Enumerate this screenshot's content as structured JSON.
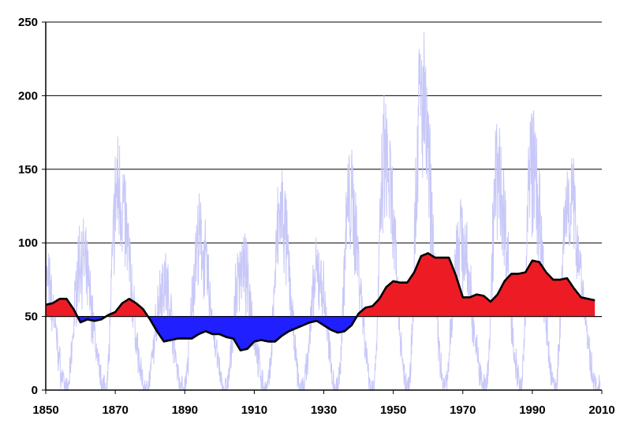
{
  "chart_data": {
    "type": "area",
    "title": "",
    "xlabel": "",
    "ylabel": "",
    "xlim": [
      1850,
      2010
    ],
    "ylim": [
      0,
      250
    ],
    "x_ticks": [
      1850,
      1870,
      1890,
      1910,
      1930,
      1950,
      1970,
      1990,
      2010
    ],
    "y_ticks": [
      0,
      50,
      100,
      150,
      200,
      250
    ],
    "grid": "horizontal",
    "baseline": 50,
    "colors": {
      "above_baseline": "#ed1c24",
      "below_baseline": "#1f1fff",
      "smoothed_line": "#000000",
      "monthly_series": "#c8c8f8",
      "gridline": "#000000"
    },
    "series": [
      {
        "role": "monthly",
        "cycle_peaks": [
          {
            "year": 1860.1,
            "value": 116
          },
          {
            "year": 1870.6,
            "value": 176
          },
          {
            "year": 1883.9,
            "value": 95
          },
          {
            "year": 1894.0,
            "value": 129
          },
          {
            "year": 1906.2,
            "value": 108
          },
          {
            "year": 1917.6,
            "value": 154
          },
          {
            "year": 1928.4,
            "value": 101
          },
          {
            "year": 1937.4,
            "value": 165
          },
          {
            "year": 1947.5,
            "value": 201
          },
          {
            "year": 1957.9,
            "value": 253
          },
          {
            "year": 1968.9,
            "value": 135
          },
          {
            "year": 1979.9,
            "value": 188
          },
          {
            "year": 1989.6,
            "value": 201
          },
          {
            "year": 2000.3,
            "value": 170
          }
        ],
        "cycle_minima": [
          {
            "year": 1856.0,
            "value": 0
          },
          {
            "year": 1867.2,
            "value": 1
          },
          {
            "year": 1878.9,
            "value": 0
          },
          {
            "year": 1889.6,
            "value": 0
          },
          {
            "year": 1901.7,
            "value": 0
          },
          {
            "year": 1913.6,
            "value": 0
          },
          {
            "year": 1923.6,
            "value": 0
          },
          {
            "year": 1933.8,
            "value": 1
          },
          {
            "year": 1944.2,
            "value": 0
          },
          {
            "year": 1954.3,
            "value": 0
          },
          {
            "year": 1964.9,
            "value": 4
          },
          {
            "year": 1976.5,
            "value": 2
          },
          {
            "year": 1986.8,
            "value": 2
          },
          {
            "year": 1996.5,
            "value": 1
          },
          {
            "year": 2008.9,
            "value": 0
          }
        ]
      },
      {
        "role": "smoothed",
        "x": [
          1850,
          1852,
          1854,
          1856,
          1858,
          1860,
          1862,
          1864,
          1866,
          1868,
          1870,
          1872,
          1874,
          1876,
          1878,
          1880,
          1882,
          1884,
          1886,
          1888,
          1890,
          1892,
          1894,
          1896,
          1898,
          1900,
          1902,
          1904,
          1906,
          1908,
          1910,
          1912,
          1914,
          1916,
          1918,
          1920,
          1922,
          1924,
          1926,
          1928,
          1930,
          1932,
          1934,
          1936,
          1938,
          1940,
          1942,
          1944,
          1946,
          1948,
          1950,
          1952,
          1954,
          1956,
          1958,
          1960,
          1962,
          1964,
          1966,
          1968,
          1970,
          1972,
          1974,
          1976,
          1978,
          1980,
          1982,
          1984,
          1986,
          1988,
          1990,
          1992,
          1994,
          1996,
          1998,
          2000,
          2002,
          2004,
          2006,
          2008
        ],
        "y": [
          58,
          59,
          62,
          62,
          55,
          46,
          48,
          47,
          48,
          51,
          53,
          59,
          62,
          59,
          55,
          48,
          40,
          33,
          34,
          35,
          35,
          35,
          38,
          40,
          38,
          38,
          36,
          35,
          27,
          28,
          33,
          34,
          33,
          33,
          37,
          40,
          42,
          44,
          46,
          47,
          44,
          41,
          39,
          40,
          44,
          52,
          56,
          57,
          62,
          70,
          74,
          73,
          73,
          80,
          91,
          93,
          90,
          90,
          90,
          78,
          63,
          63,
          65,
          64,
          60,
          65,
          74,
          79,
          79,
          80,
          88,
          87,
          80,
          75,
          75,
          76,
          69,
          63,
          62,
          61
        ]
      }
    ]
  }
}
